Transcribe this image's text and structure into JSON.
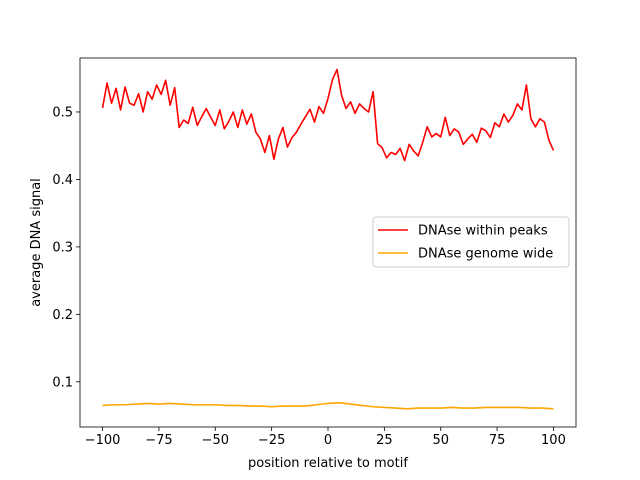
{
  "chart_data": {
    "type": "line",
    "xlabel": "position relative to motif",
    "ylabel": "average DNA signal",
    "xlim": [
      -110,
      110
    ],
    "ylim": [
      0.033,
      0.58
    ],
    "xticks": [
      -100,
      -75,
      -50,
      -25,
      0,
      25,
      50,
      75,
      100
    ],
    "xtick_labels": [
      "−100",
      "−75",
      "−50",
      "−25",
      "0",
      "25",
      "50",
      "75",
      "100"
    ],
    "yticks": [
      0.1,
      0.2,
      0.3,
      0.4,
      0.5
    ],
    "ytick_labels": [
      "0.1",
      "0.2",
      "0.3",
      "0.4",
      "0.5"
    ],
    "grid": false,
    "legend": {
      "position": "center-right"
    },
    "series": [
      {
        "name": "DNAse within peaks",
        "color": "#ff0000",
        "x": [
          -100,
          -98,
          -96,
          -94,
          -92,
          -90,
          -88,
          -86,
          -84,
          -82,
          -80,
          -78,
          -76,
          -74,
          -72,
          -70,
          -68,
          -66,
          -64,
          -62,
          -60,
          -58,
          -56,
          -54,
          -52,
          -50,
          -48,
          -46,
          -44,
          -42,
          -40,
          -38,
          -36,
          -34,
          -32,
          -30,
          -28,
          -26,
          -24,
          -22,
          -20,
          -18,
          -16,
          -14,
          -12,
          -10,
          -8,
          -6,
          -4,
          -2,
          0,
          2,
          4,
          6,
          8,
          10,
          12,
          14,
          16,
          18,
          20,
          22,
          24,
          26,
          28,
          30,
          32,
          34,
          36,
          38,
          40,
          42,
          44,
          46,
          48,
          50,
          52,
          54,
          56,
          58,
          60,
          62,
          64,
          66,
          68,
          70,
          72,
          74,
          76,
          78,
          80,
          82,
          84,
          86,
          88,
          90,
          92,
          94,
          96,
          98,
          100
        ],
        "values": [
          0.506,
          0.543,
          0.513,
          0.535,
          0.503,
          0.537,
          0.513,
          0.51,
          0.527,
          0.5,
          0.53,
          0.519,
          0.54,
          0.526,
          0.547,
          0.51,
          0.536,
          0.477,
          0.488,
          0.483,
          0.507,
          0.48,
          0.493,
          0.505,
          0.492,
          0.48,
          0.503,
          0.475,
          0.486,
          0.5,
          0.477,
          0.503,
          0.482,
          0.497,
          0.47,
          0.46,
          0.44,
          0.465,
          0.43,
          0.46,
          0.477,
          0.448,
          0.462,
          0.47,
          0.482,
          0.493,
          0.504,
          0.485,
          0.508,
          0.498,
          0.52,
          0.548,
          0.563,
          0.525,
          0.505,
          0.515,
          0.498,
          0.512,
          0.505,
          0.5,
          0.53,
          0.453,
          0.447,
          0.432,
          0.44,
          0.437,
          0.446,
          0.428,
          0.452,
          0.442,
          0.435,
          0.455,
          0.478,
          0.463,
          0.468,
          0.463,
          0.492,
          0.465,
          0.475,
          0.47,
          0.452,
          0.46,
          0.467,
          0.455,
          0.476,
          0.472,
          0.462,
          0.484,
          0.478,
          0.497,
          0.485,
          0.495,
          0.512,
          0.503,
          0.54,
          0.49,
          0.478,
          0.49,
          0.485,
          0.458,
          0.443
        ]
      },
      {
        "name": "DNAse genome wide",
        "color": "#ffa500",
        "x": [
          -100,
          -95,
          -90,
          -85,
          -80,
          -75,
          -70,
          -65,
          -60,
          -55,
          -50,
          -45,
          -40,
          -35,
          -30,
          -25,
          -20,
          -15,
          -10,
          -5,
          0,
          5,
          10,
          15,
          20,
          25,
          30,
          35,
          40,
          45,
          50,
          55,
          60,
          65,
          70,
          75,
          80,
          85,
          90,
          95,
          100
        ],
        "values": [
          0.065,
          0.066,
          0.066,
          0.067,
          0.068,
          0.067,
          0.068,
          0.067,
          0.066,
          0.066,
          0.066,
          0.065,
          0.065,
          0.064,
          0.064,
          0.063,
          0.064,
          0.064,
          0.064,
          0.066,
          0.068,
          0.069,
          0.067,
          0.065,
          0.063,
          0.062,
          0.061,
          0.06,
          0.061,
          0.061,
          0.061,
          0.062,
          0.061,
          0.061,
          0.062,
          0.062,
          0.062,
          0.062,
          0.061,
          0.061,
          0.06
        ]
      }
    ]
  }
}
